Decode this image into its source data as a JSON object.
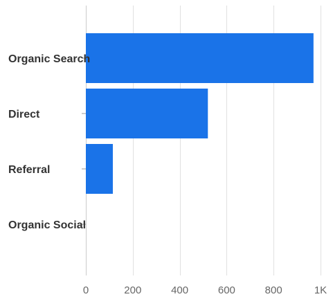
{
  "chart_data": {
    "type": "bar",
    "orientation": "horizontal",
    "categories": [
      "Organic Search",
      "Direct",
      "Referral",
      "Organic Social"
    ],
    "values": [
      970,
      520,
      115,
      0
    ],
    "xlim": [
      0,
      1000
    ],
    "x_ticks": [
      0,
      200,
      400,
      600,
      800,
      1000
    ],
    "x_tick_labels": [
      "0",
      "200",
      "400",
      "600",
      "800",
      "1K"
    ],
    "title": "",
    "xlabel": "",
    "ylabel": "",
    "grid": "vertical",
    "bar_color": "#1a73e8",
    "grid_color": "#e0e0e0"
  }
}
